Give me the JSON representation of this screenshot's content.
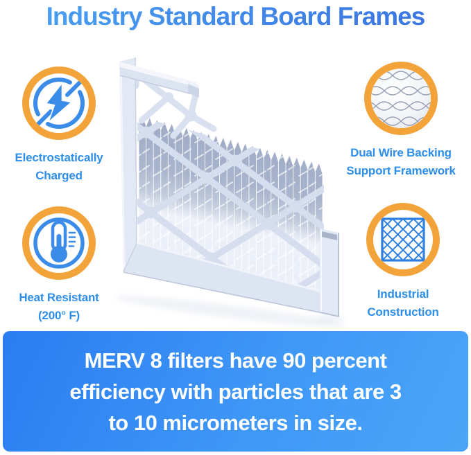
{
  "title": "Industry Standard Board Frames",
  "features": [
    {
      "label": "Electrostatically\nCharged",
      "icon": "lightning-bolt-icon"
    },
    {
      "label": "Dual Wire Backing\nSupport Framework",
      "icon": "wire-mesh-icon"
    },
    {
      "label": "Heat Resistant\n(200° F)",
      "icon": "thermometer-icon"
    },
    {
      "label": "Industrial\nConstruction",
      "icon": "diamond-lattice-icon"
    }
  ],
  "banner": {
    "text": "MERV 8 filters have 90 percent\nefficiency with particles that are 3\nto 10 micrometers in size."
  },
  "illustration": {
    "description": "Pleated air filter with industry standard board frame"
  },
  "colors": {
    "title_blue": "#3F8EE9",
    "label_blue": "#2E8EE8",
    "ring_orange": "#F2A43B",
    "icon_blue": "#3B8CE8",
    "banner_blue_start": "#2B7CF2",
    "banner_blue_end": "#4AA5F8",
    "text_white": "#FFFFFF"
  }
}
